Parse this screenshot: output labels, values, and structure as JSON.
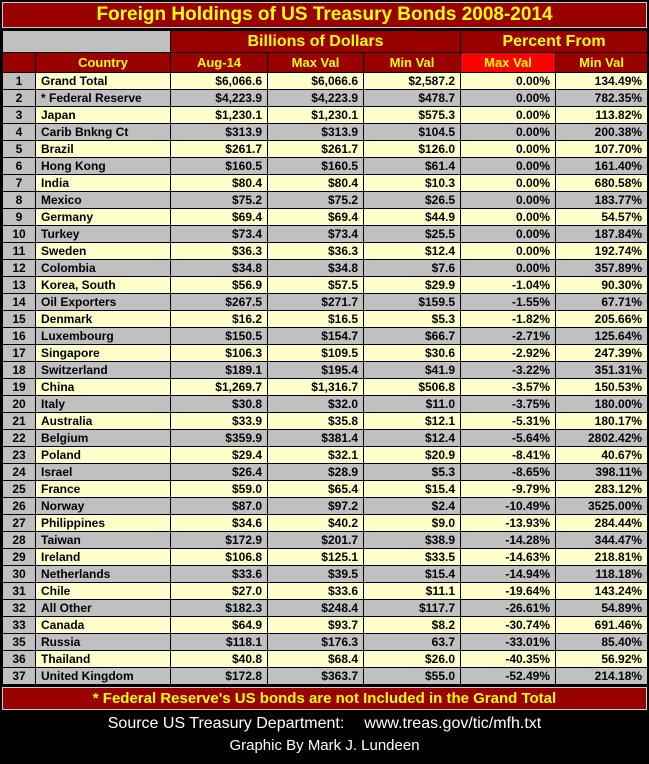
{
  "title": "Foreign Holdings of US Treasury Bonds 2008-2014",
  "header": {
    "group_billions": "Billions of Dollars",
    "group_percent": "Percent From",
    "columns": [
      "Country",
      "Aug-14",
      "Max Val",
      "Min Val",
      "Max Val",
      "Min Val"
    ]
  },
  "chart_data": {
    "type": "table",
    "columns": [
      "#",
      "Country",
      "Aug-14 (Billions of Dollars)",
      "Max Val (Billions of Dollars)",
      "Min Val (Billions of Dollars)",
      "Percent From Max Val",
      "Percent From Min Val"
    ],
    "rows": [
      [
        "1",
        "Grand Total",
        "$6,066.6",
        "$6,066.6",
        "$2,587.2",
        "0.00%",
        "134.49%"
      ],
      [
        "2",
        "* Federal Reserve",
        "$4,223.9",
        "$4,223.9",
        "$478.7",
        "0.00%",
        "782.35%"
      ],
      [
        "3",
        "Japan",
        "$1,230.1",
        "$1,230.1",
        "$575.3",
        "0.00%",
        "113.82%"
      ],
      [
        "4",
        "Carib Bnkng Ct",
        "$313.9",
        "$313.9",
        "$104.5",
        "0.00%",
        "200.38%"
      ],
      [
        "5",
        "Brazil",
        "$261.7",
        "$261.7",
        "$126.0",
        "0.00%",
        "107.70%"
      ],
      [
        "6",
        "Hong Kong",
        "$160.5",
        "$160.5",
        "$61.4",
        "0.00%",
        "161.40%"
      ],
      [
        "7",
        "India",
        "$80.4",
        "$80.4",
        "$10.3",
        "0.00%",
        "680.58%"
      ],
      [
        "8",
        "Mexico",
        "$75.2",
        "$75.2",
        "$26.5",
        "0.00%",
        "183.77%"
      ],
      [
        "9",
        "Germany",
        "$69.4",
        "$69.4",
        "$44.9",
        "0.00%",
        "54.57%"
      ],
      [
        "10",
        "Turkey",
        "$73.4",
        "$73.4",
        "$25.5",
        "0.00%",
        "187.84%"
      ],
      [
        "11",
        "Sweden",
        "$36.3",
        "$36.3",
        "$12.4",
        "0.00%",
        "192.74%"
      ],
      [
        "12",
        "Colombia",
        "$34.8",
        "$34.8",
        "$7.6",
        "0.00%",
        "357.89%"
      ],
      [
        "13",
        "Korea, South",
        "$56.9",
        "$57.5",
        "$29.9",
        "-1.04%",
        "90.30%"
      ],
      [
        "14",
        "Oil Exporters",
        "$267.5",
        "$271.7",
        "$159.5",
        "-1.55%",
        "67.71%"
      ],
      [
        "15",
        "Denmark",
        "$16.2",
        "$16.5",
        "$5.3",
        "-1.82%",
        "205.66%"
      ],
      [
        "16",
        "Luxembourg",
        "$150.5",
        "$154.7",
        "$66.7",
        "-2.71%",
        "125.64%"
      ],
      [
        "17",
        "Singapore",
        "$106.3",
        "$109.5",
        "$30.6",
        "-2.92%",
        "247.39%"
      ],
      [
        "18",
        "Switzerland",
        "$189.1",
        "$195.4",
        "$41.9",
        "-3.22%",
        "351.31%"
      ],
      [
        "19",
        "China",
        "$1,269.7",
        "$1,316.7",
        "$506.8",
        "-3.57%",
        "150.53%"
      ],
      [
        "20",
        "Italy",
        "$30.8",
        "$32.0",
        "$11.0",
        "-3.75%",
        "180.00%"
      ],
      [
        "21",
        "Australia",
        "$33.9",
        "$35.8",
        "$12.1",
        "-5.31%",
        "180.17%"
      ],
      [
        "22",
        "Belgium",
        "$359.9",
        "$381.4",
        "$12.4",
        "-5.64%",
        "2802.42%"
      ],
      [
        "23",
        "Poland",
        "$29.4",
        "$32.1",
        "$20.9",
        "-8.41%",
        "40.67%"
      ],
      [
        "24",
        "Israel",
        "$26.4",
        "$28.9",
        "$5.3",
        "-8.65%",
        "398.11%"
      ],
      [
        "25",
        "France",
        "$59.0",
        "$65.4",
        "$15.4",
        "-9.79%",
        "283.12%"
      ],
      [
        "26",
        "Norway",
        "$87.0",
        "$97.2",
        "$2.4",
        "-10.49%",
        "3525.00%"
      ],
      [
        "27",
        "Philippines",
        "$34.6",
        "$40.2",
        "$9.0",
        "-13.93%",
        "284.44%"
      ],
      [
        "28",
        "Taiwan",
        "$172.9",
        "$201.7",
        "$38.9",
        "-14.28%",
        "344.47%"
      ],
      [
        "29",
        "Ireland",
        "$106.8",
        "$125.1",
        "$33.5",
        "-14.63%",
        "218.81%"
      ],
      [
        "30",
        "Netherlands",
        "$33.6",
        "$39.5",
        "$15.4",
        "-14.94%",
        "118.18%"
      ],
      [
        "31",
        "Chile",
        "$27.0",
        "$33.6",
        "$11.1",
        "-19.64%",
        "143.24%"
      ],
      [
        "32",
        "All Other",
        "$182.3",
        "$248.4",
        "$117.7",
        "-26.61%",
        "54.89%"
      ],
      [
        "33",
        "Canada",
        "$64.9",
        "$93.7",
        "$8.2",
        "-30.74%",
        "691.46%"
      ],
      [
        "35",
        "Russia",
        "$118.1",
        "$176.3",
        "63.7",
        "-33.01%",
        "85.40%"
      ],
      [
        "36",
        "Thailand",
        "$40.8",
        "$68.4",
        "$26.0",
        "-40.35%",
        "56.92%"
      ],
      [
        "37",
        "United Kingdom",
        "$172.8",
        "$363.7",
        "$55.0",
        "-52.49%",
        "214.18%"
      ]
    ]
  },
  "footnote": "* Federal Reserve's US bonds are not Included in the Grand Total",
  "source_label": "Source US Treasury Department:",
  "source_url": "www.treas.gov/tic/mfh.txt",
  "credit": "Graphic By Mark J. Lundeen",
  "colors": {
    "background": "#000000",
    "maroon": "#990000",
    "bright_red": "#FF0000",
    "header_text": "#FFFF00",
    "row_yellow": "#FFFFCC",
    "row_gray": "#C0C0C0"
  }
}
